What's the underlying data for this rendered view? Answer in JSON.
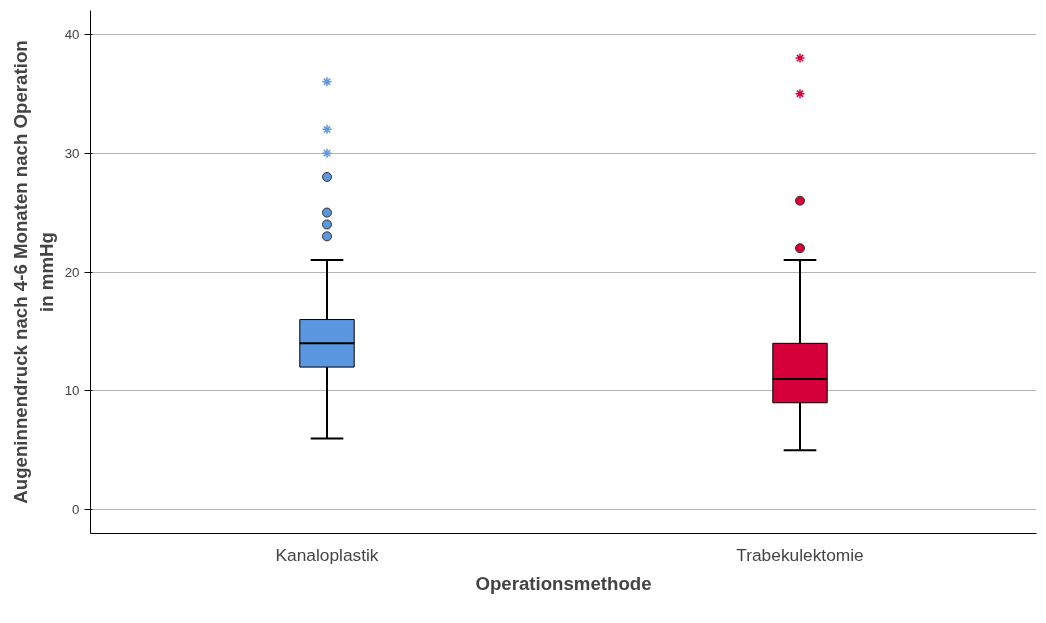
{
  "chart_data": {
    "type": "box",
    "xlabel": "Operationsmethode",
    "ylabel": "Augeninnendruck nach 4-6 Monaten nach Operation in mmHg",
    "categories": [
      "Kanaloplastik",
      "Trabekulektomie"
    ],
    "colors": [
      "#5b96e0",
      "#d5003a"
    ],
    "boxes": [
      {
        "low": 6,
        "q1": 12,
        "median": 14,
        "q3": 16,
        "high": 21,
        "outliers": [
          23,
          24,
          25,
          28,
          30,
          32,
          36
        ]
      },
      {
        "low": 5,
        "q1": 9,
        "median": 11,
        "q3": 14,
        "high": 21,
        "outliers": [
          22,
          26,
          35,
          38
        ]
      }
    ],
    "ylim": [
      -2,
      42
    ],
    "yticks": [
      0,
      10,
      20,
      30,
      40
    ],
    "grid": "y"
  }
}
